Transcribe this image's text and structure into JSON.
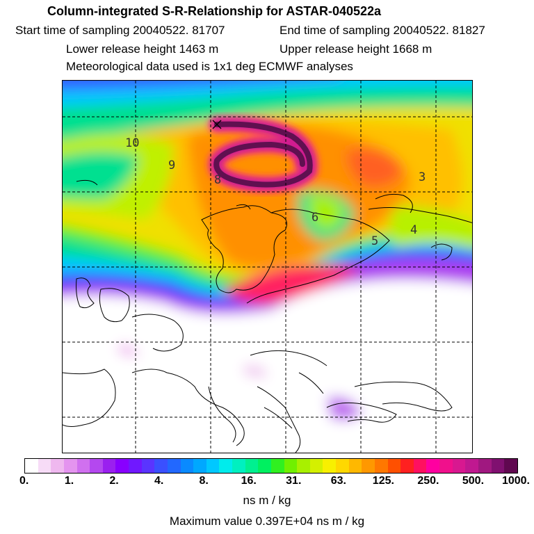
{
  "header": {
    "title": "Column-integrated S-R-Relationship for ASTAR-040522a",
    "start_time": "Start time of sampling 20040522. 81707",
    "end_time": "End time of sampling 20040522. 81827",
    "lower_height": "Lower release height 1463 m",
    "upper_height": "Upper release height 1668 m",
    "met_data": "Meteorological data used is 1x1 deg ECMWF analyses"
  },
  "map": {
    "day_labels": [
      "10",
      "9",
      "8",
      "6",
      "5",
      "4",
      "3"
    ],
    "release_marker_icon": "x-release-marker-icon"
  },
  "colorbar": {
    "ticks": [
      "0.",
      "1.",
      "2.",
      "4.",
      "8.",
      "16.",
      "31.",
      "63.",
      "125.",
      "250.",
      "500.",
      "1000."
    ],
    "colors": [
      "#ffffff",
      "#f7dcf7",
      "#efb8ef",
      "#e494ef",
      "#d070ef",
      "#b448ef",
      "#9a20ef",
      "#8800ff",
      "#7018ff",
      "#5a34ff",
      "#3a50ff",
      "#2268ff",
      "#0a8aff",
      "#00a8ff",
      "#00c8ff",
      "#00ecec",
      "#00f0c0",
      "#00f090",
      "#00f060",
      "#30f020",
      "#70f000",
      "#a8f000",
      "#d4f000",
      "#f8f000",
      "#ffd800",
      "#ffb800",
      "#ff9800",
      "#ff7800",
      "#ff5000",
      "#ff2020",
      "#ff1060",
      "#ff00a0",
      "#f0108c",
      "#d81890",
      "#c01890",
      "#a01880",
      "#801070",
      "#600850"
    ],
    "unit": "ns m / kg"
  },
  "max_value": "Maximum value  0.397E+04 ns m / kg"
}
